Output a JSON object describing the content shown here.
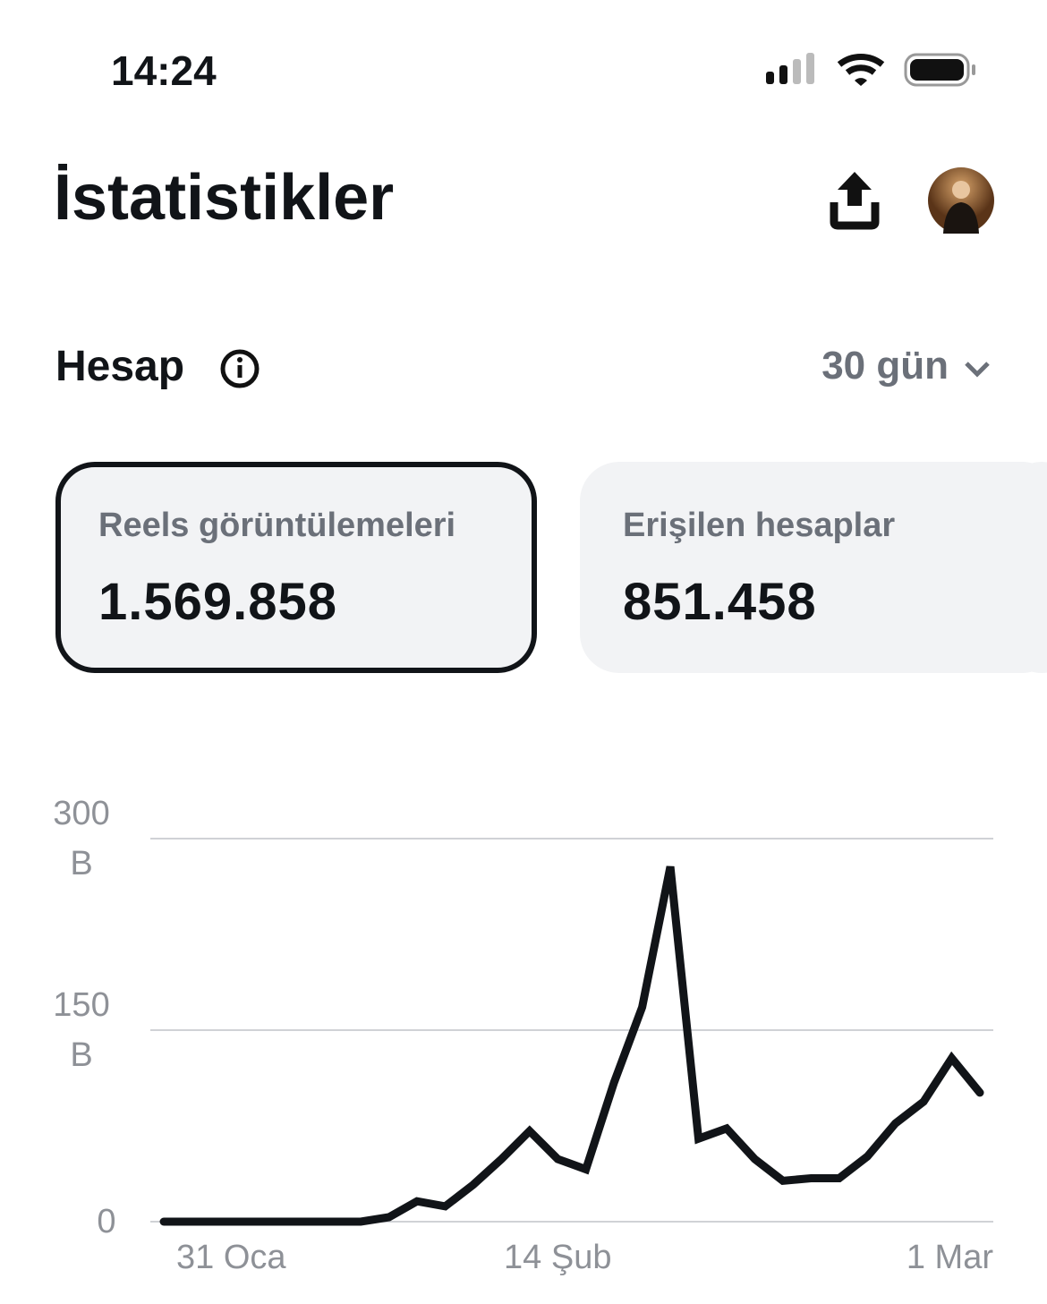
{
  "status_bar": {
    "time": "14:24"
  },
  "header": {
    "title": "İstatistikler"
  },
  "section": {
    "title": "Hesap",
    "period": "30 gün"
  },
  "cards": [
    {
      "label": "Reels görüntülemeleri",
      "value": "1.569.858",
      "selected": true
    },
    {
      "label": "Erişilen hesaplar",
      "value": "851.458",
      "selected": false
    }
  ],
  "chart_data": {
    "type": "line",
    "categories": [
      "31 Oca",
      null,
      null,
      null,
      null,
      null,
      null,
      null,
      null,
      null,
      null,
      null,
      null,
      null,
      "14 Şub",
      null,
      null,
      null,
      null,
      null,
      null,
      null,
      null,
      null,
      null,
      null,
      null,
      null,
      null,
      "1 Mar"
    ],
    "values": [
      0,
      0,
      0,
      0,
      0,
      0,
      0,
      0,
      3.5,
      16,
      12,
      29,
      49,
      71,
      49,
      41,
      109,
      168,
      278,
      65,
      73,
      49,
      32,
      34,
      34,
      51,
      77,
      94,
      128,
      101
    ],
    "color": "#111418",
    "ylim": [
      0,
      300
    ],
    "yticks": [
      0,
      {
        "value": 150,
        "label": "150 B"
      },
      {
        "value": 300,
        "label": "300 B"
      }
    ],
    "grid": true
  }
}
